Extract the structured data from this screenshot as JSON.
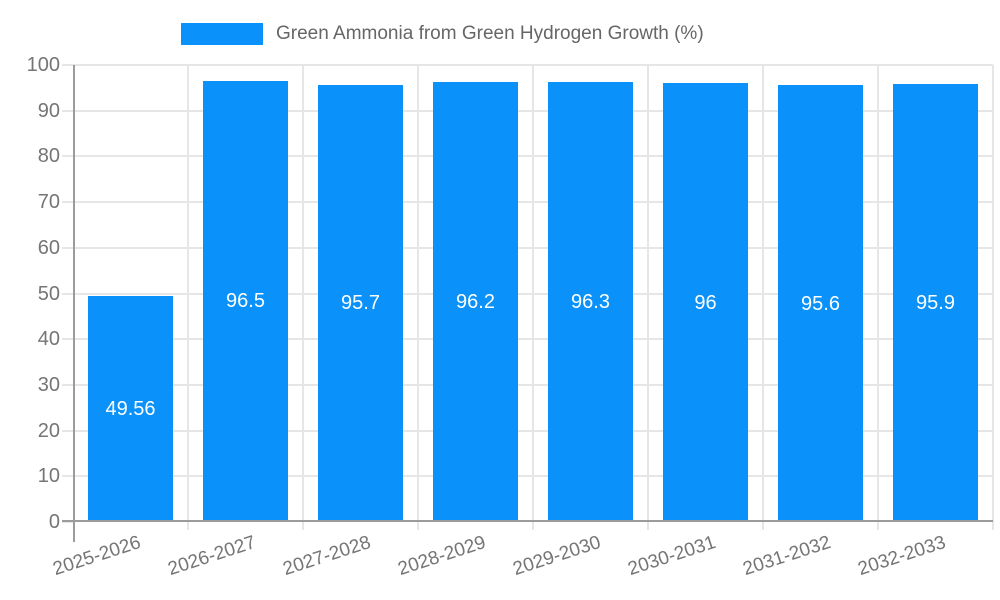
{
  "legend": {
    "label": "Green Ammonia from Green Hydrogen Growth (%)"
  },
  "chart_data": {
    "type": "bar",
    "title": "Green Ammonia from Green Hydrogen Growth (%)",
    "categories": [
      "2025-2026",
      "2026-2027",
      "2027-2028",
      "2028-2029",
      "2029-2030",
      "2030-2031",
      "2031-2032",
      "2032-2033"
    ],
    "values": [
      49.56,
      96.5,
      95.7,
      96.2,
      96.3,
      96,
      95.6,
      95.9
    ],
    "xlabel": "",
    "ylabel": "",
    "ylim": [
      0,
      100
    ],
    "ytick_step": 10,
    "grid": true,
    "legend_position": "top",
    "value_labels_inside_bars": true
  },
  "colors": {
    "bar": "#0a91fa",
    "grid": "#e6e6e6",
    "axis": "#9c9c9c",
    "tick_text": "#757575",
    "legend_text": "#666666",
    "bar_label_text": "#ffffff",
    "background": "#ffffff"
  }
}
